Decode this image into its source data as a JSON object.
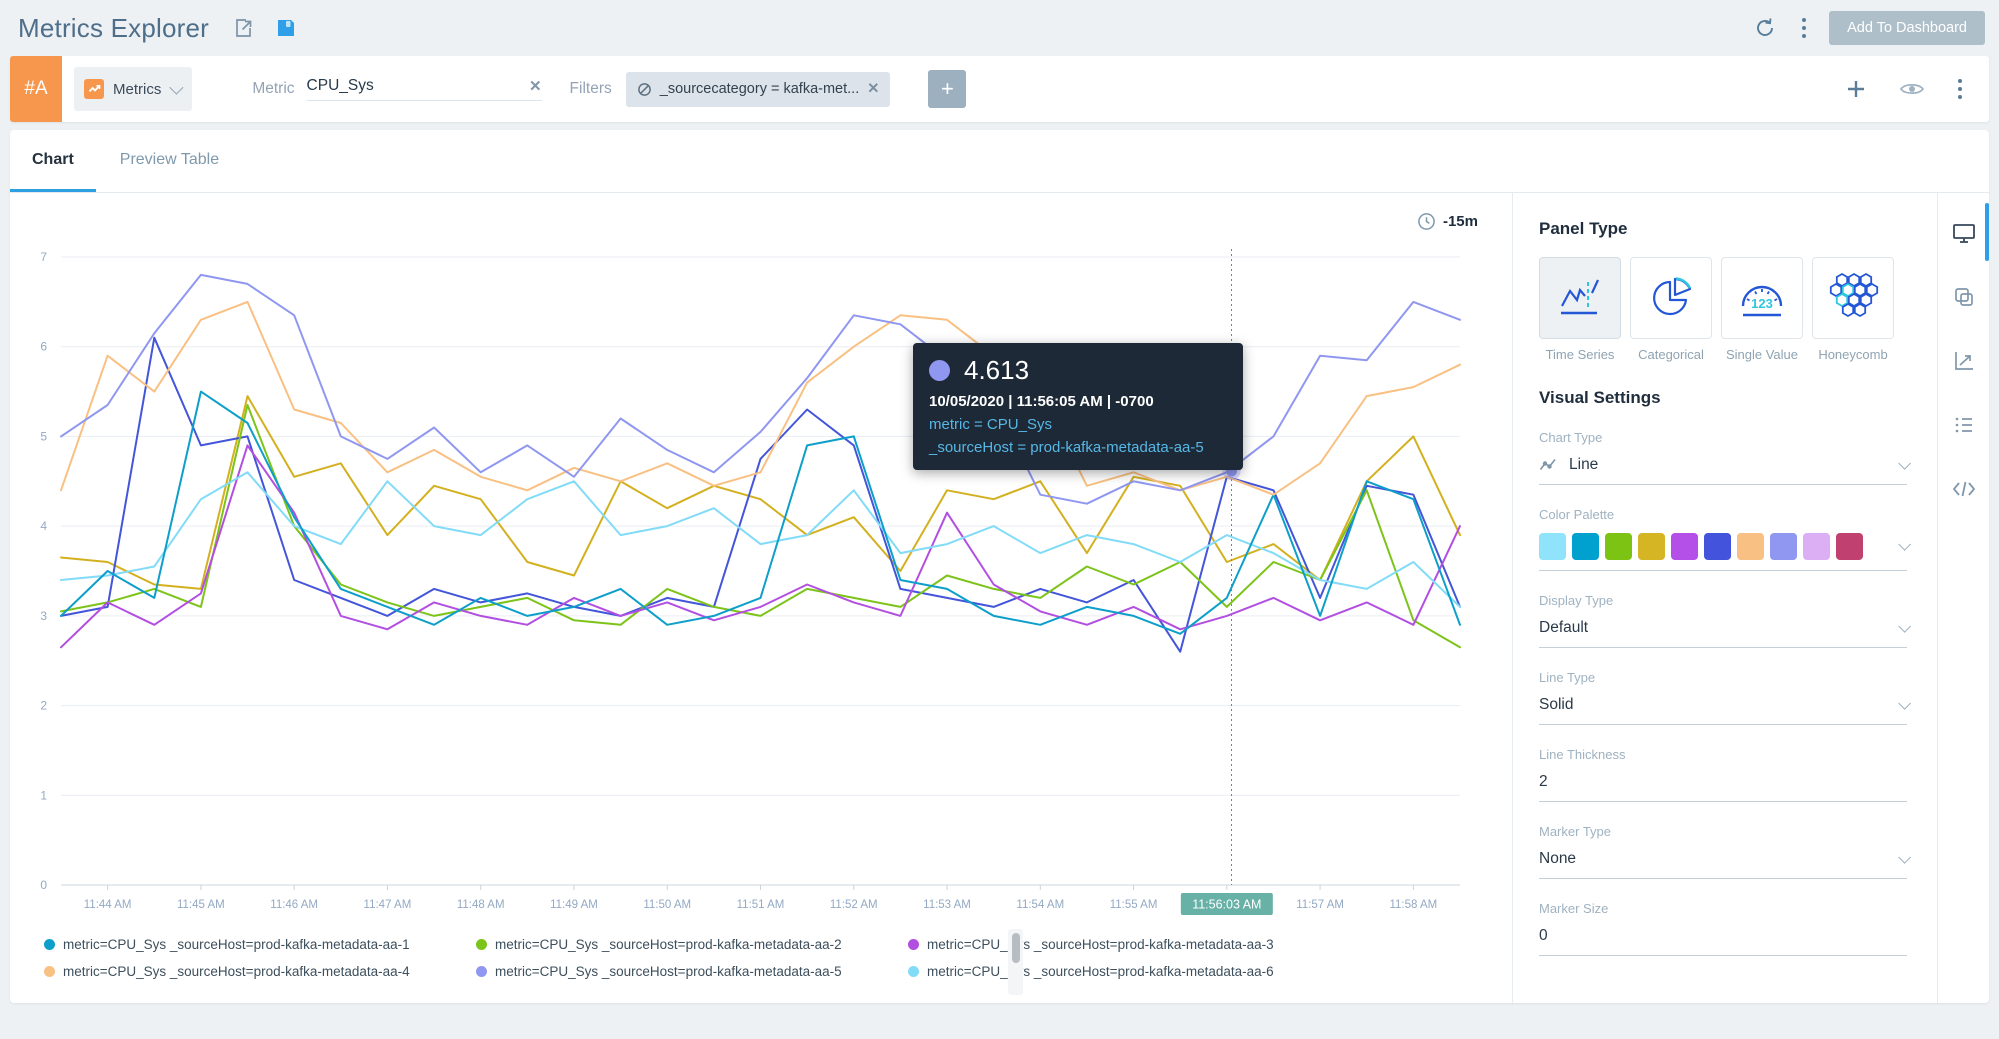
{
  "header": {
    "title": "Metrics Explorer",
    "add_to_dashboard_label": "Add To Dashboard",
    "icons": [
      "share-icon",
      "save-icon",
      "refresh-icon",
      "kebab-icon"
    ]
  },
  "query_row": {
    "row_id": "#A",
    "source_type": "Metrics",
    "metric_label": "Metric",
    "metric_value": "CPU_Sys",
    "filters_label": "Filters",
    "filter_chip": "_sourcecategory = kafka-met...",
    "icons": [
      "add-query-icon",
      "eye-icon",
      "kebab-icon"
    ]
  },
  "tabs": [
    {
      "label": "Chart",
      "active": true
    },
    {
      "label": "Preview Table",
      "active": false
    }
  ],
  "time_range": "-15m",
  "tooltip": {
    "value": "4.613",
    "timestamp": "10/05/2020 | 11:56:05 AM | -0700",
    "metric_line": "metric = CPU_Sys",
    "host_line": "_sourceHost = prod-kafka-metadata-aa-5",
    "dot_color": "#8f97f0",
    "bg_color": "#1d2936"
  },
  "chart_data": {
    "type": "line",
    "xlabel": "",
    "ylabel": "",
    "ylim": [
      0,
      7
    ],
    "y_tick_step": 1,
    "x_start": "11:43:30 AM",
    "x_step_seconds": 30,
    "x_ticks": [
      "11:44 AM",
      "11:45 AM",
      "11:46 AM",
      "11:47 AM",
      "11:48 AM",
      "11:49 AM",
      "11:50 AM",
      "11:51 AM",
      "11:52 AM",
      "11:53 AM",
      "11:54 AM",
      "11:55 AM",
      "11:56 AM",
      "11:57 AM",
      "11:58 AM"
    ],
    "grid": true,
    "legend_position": "bottom",
    "highlight": {
      "x_label": "11:56:03 AM",
      "tick_index": 12,
      "x_index": 25.1,
      "point_value": 4.613,
      "point_series": "metric=CPU_Sys _sourceHost=prod-kafka-metadata-aa-5",
      "badge_color": "#68b1a6",
      "crosshair_color": "#e2574b",
      "dot_color": "#8f97f0"
    },
    "render_order": [
      6,
      7,
      1,
      2,
      5,
      0,
      3,
      4
    ],
    "series": [
      {
        "name": "metric=CPU_Sys _sourceHost=prod-kafka-metadata-aa-1",
        "color": "#0d9fca",
        "values": [
          3.0,
          3.5,
          3.2,
          5.5,
          5.15,
          4.1,
          3.3,
          3.1,
          2.9,
          3.2,
          3.0,
          3.1,
          3.3,
          2.9,
          3.0,
          3.2,
          4.9,
          5.0,
          3.4,
          3.3,
          3.0,
          2.9,
          3.1,
          3.0,
          2.8,
          3.2,
          4.35,
          3.0,
          4.5,
          4.3,
          2.9
        ]
      },
      {
        "name": "metric=CPU_Sys _sourceHost=prod-kafka-metadata-aa-2",
        "color": "#7cc31a",
        "values": [
          3.05,
          3.15,
          3.3,
          3.1,
          5.35,
          4.0,
          3.35,
          3.15,
          3.0,
          3.1,
          3.2,
          2.95,
          2.9,
          3.3,
          3.1,
          3.0,
          3.3,
          3.2,
          3.1,
          3.45,
          3.3,
          3.2,
          3.55,
          3.35,
          3.6,
          3.1,
          3.6,
          3.4,
          4.4,
          2.95,
          2.65
        ]
      },
      {
        "name": "metric=CPU_Sys _sourceHost=prod-kafka-metadata-aa-3",
        "color": "#b24fe0",
        "values": [
          2.65,
          3.15,
          2.9,
          3.25,
          4.9,
          4.15,
          3.0,
          2.85,
          3.15,
          3.0,
          2.9,
          3.2,
          3.0,
          3.15,
          2.95,
          3.1,
          3.35,
          3.15,
          3.0,
          4.15,
          3.35,
          3.05,
          2.9,
          3.1,
          2.85,
          3.0,
          3.2,
          2.95,
          3.15,
          2.9,
          4.0
        ]
      },
      {
        "name": "metric=CPU_Sys _sourceHost=prod-kafka-metadata-aa-4",
        "color": "#f9c083",
        "values": [
          4.4,
          5.9,
          5.5,
          6.3,
          6.5,
          5.3,
          5.15,
          4.6,
          4.85,
          4.55,
          4.4,
          4.65,
          4.5,
          4.7,
          4.45,
          4.6,
          5.6,
          6.0,
          6.35,
          6.3,
          5.9,
          5.5,
          4.45,
          4.6,
          4.4,
          4.55,
          4.35,
          4.7,
          5.45,
          5.55,
          5.8
        ]
      },
      {
        "name": "metric=CPU_Sys _sourceHost=prod-kafka-metadata-aa-5",
        "color": "#8f97f0",
        "values": [
          5.0,
          5.35,
          6.15,
          6.8,
          6.7,
          6.35,
          5.0,
          4.75,
          5.1,
          4.6,
          4.9,
          4.55,
          5.2,
          4.85,
          4.6,
          5.05,
          5.65,
          6.35,
          6.25,
          5.85,
          5.4,
          4.35,
          4.25,
          4.5,
          4.4,
          4.6,
          5.0,
          5.9,
          5.85,
          6.5,
          6.3
        ]
      },
      {
        "name": "metric=CPU_Sys _sourceHost=prod-kafka-metadata-aa-6",
        "color": "#82dbf7",
        "values": [
          3.4,
          3.45,
          3.55,
          4.3,
          4.6,
          4.0,
          3.8,
          4.5,
          4.0,
          3.9,
          4.3,
          4.5,
          3.9,
          4.0,
          4.2,
          3.8,
          3.9,
          4.4,
          3.7,
          3.8,
          4.0,
          3.7,
          3.9,
          3.8,
          3.6,
          3.9,
          3.7,
          3.4,
          3.3,
          3.6,
          3.1
        ]
      },
      {
        "name": "",
        "color": "#d3b01f",
        "values": [
          3.65,
          3.6,
          3.35,
          3.3,
          5.45,
          4.55,
          4.7,
          3.9,
          4.45,
          4.3,
          3.6,
          3.45,
          4.5,
          4.2,
          4.45,
          4.3,
          3.9,
          4.1,
          3.5,
          4.4,
          4.3,
          4.5,
          3.7,
          4.55,
          4.45,
          3.6,
          3.8,
          3.4,
          4.5,
          5.0,
          3.9
        ]
      },
      {
        "name": "",
        "color": "#4355d8",
        "values": [
          3.0,
          3.1,
          6.1,
          4.9,
          5.0,
          3.4,
          3.2,
          3.0,
          3.3,
          3.15,
          3.25,
          3.1,
          3.0,
          3.2,
          3.1,
          4.75,
          5.3,
          4.9,
          3.3,
          3.2,
          3.1,
          3.3,
          3.15,
          3.4,
          2.6,
          4.55,
          4.4,
          3.2,
          4.45,
          4.35,
          3.1
        ]
      }
    ]
  },
  "panel_type": {
    "title": "Panel Type",
    "options": [
      {
        "label": "Time Series",
        "selected": true
      },
      {
        "label": "Categorical",
        "selected": false
      },
      {
        "label": "Single Value",
        "selected": false
      },
      {
        "label": "Honeycomb",
        "selected": false
      }
    ]
  },
  "visual_settings": {
    "title": "Visual Settings",
    "fields": [
      {
        "label": "Chart Type",
        "value": "Line",
        "dropdown": true
      },
      {
        "label": "Color Palette",
        "dropdown": true,
        "palette": [
          "#8fe3fa",
          "#00a0cf",
          "#7cc314",
          "#d6b525",
          "#b44fe8",
          "#4453db",
          "#f9c083",
          "#8f97f0",
          "#dcaff5",
          "#c0416f"
        ]
      },
      {
        "label": "Display Type",
        "value": "Default",
        "dropdown": true
      },
      {
        "label": "Line Type",
        "value": "Solid",
        "dropdown": true
      },
      {
        "label": "Line Thickness",
        "value": "2",
        "dropdown": false
      },
      {
        "label": "Marker Type",
        "value": "None",
        "dropdown": true
      },
      {
        "label": "Marker Size",
        "value": "0",
        "dropdown": false
      }
    ]
  },
  "right_toolbar": {
    "icons": [
      "monitor-icon",
      "copy-panels-icon",
      "axes-chart-icon",
      "list-icon",
      "code-icon"
    ],
    "active_index": 0
  }
}
